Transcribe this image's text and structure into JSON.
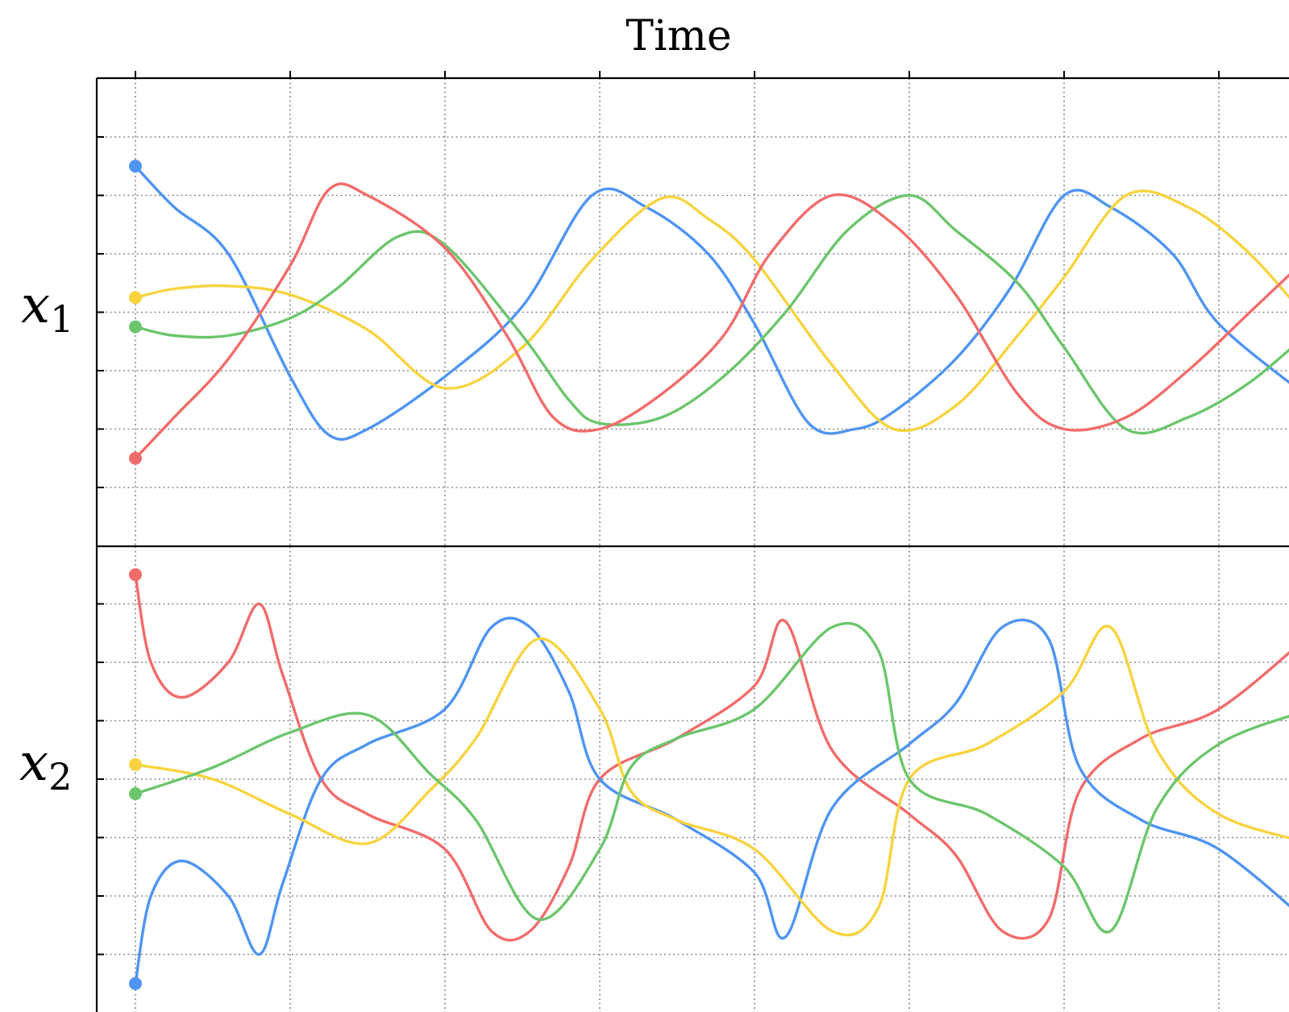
{
  "chart_data": {
    "type": "line",
    "title": "Time",
    "colors": {
      "red": "#f26b6b",
      "blue": "#4f94f3",
      "yellow": "#f8d33f",
      "green": "#6cc56c"
    },
    "panels": [
      {
        "ylabel_main": "x",
        "ylabel_sub": "1",
        "ylim": [
          -4,
          4
        ],
        "xlim": [
          -0.25,
          7.6
        ],
        "series": [
          {
            "color_key": "blue",
            "x": [
              0,
              0.25,
              0.6,
              1.0,
              1.25,
              1.5,
              2.0,
              2.5,
              2.95,
              3.3,
              3.7,
              4.0,
              4.35,
              4.65,
              4.9,
              5.3,
              5.65,
              6.0,
              6.3,
              6.7,
              7.0,
              7.6
            ],
            "y": [
              2.5,
              1.8,
              1.0,
              -1.1,
              -2.1,
              -2.0,
              -1.1,
              0.1,
              2.0,
              1.8,
              1.0,
              -0.2,
              -1.9,
              -2.0,
              -1.7,
              -0.8,
              0.4,
              2.0,
              1.8,
              1.0,
              -0.2,
              -1.5
            ]
          },
          {
            "color_key": "yellow",
            "x": [
              0,
              0.25,
              0.6,
              1.0,
              1.5,
              2.0,
              2.5,
              2.95,
              3.4,
              3.7,
              4.0,
              4.5,
              4.9,
              5.3,
              5.7,
              6.0,
              6.4,
              6.8,
              7.2,
              7.6
            ],
            "y": [
              0.25,
              0.4,
              0.45,
              0.3,
              -0.3,
              -1.3,
              -0.6,
              0.9,
              1.95,
              1.6,
              0.9,
              -0.9,
              -2.0,
              -1.6,
              -0.4,
              0.6,
              2.0,
              1.8,
              1.0,
              -0.2
            ]
          },
          {
            "color_key": "green",
            "x": [
              0,
              0.25,
              0.6,
              1.0,
              1.3,
              1.7,
              2.0,
              2.5,
              2.8,
              3.0,
              3.4,
              3.8,
              4.2,
              4.6,
              5.0,
              5.3,
              5.7,
              6.0,
              6.4,
              6.8,
              7.2,
              7.6
            ],
            "y": [
              -0.25,
              -0.4,
              -0.4,
              -0.1,
              0.4,
              1.3,
              1.15,
              -0.4,
              -1.5,
              -1.9,
              -1.8,
              -1.1,
              0.0,
              1.4,
              2.0,
              1.4,
              0.5,
              -0.6,
              -2.0,
              -1.8,
              -1.2,
              -0.3
            ]
          },
          {
            "color_key": "red",
            "x": [
              0,
              0.25,
              0.6,
              1.0,
              1.25,
              1.5,
              2.0,
              2.4,
              2.7,
              3.0,
              3.4,
              3.8,
              4.1,
              4.5,
              4.9,
              5.3,
              5.7,
              6.0,
              6.4,
              6.8,
              7.2,
              7.6
            ],
            "y": [
              -2.5,
              -1.8,
              -0.8,
              0.8,
              2.1,
              2.0,
              1.1,
              -0.4,
              -1.8,
              -2.0,
              -1.4,
              -0.4,
              1.0,
              2.0,
              1.5,
              0.3,
              -1.4,
              -2.0,
              -1.8,
              -1.0,
              0.0,
              1.0
            ]
          }
        ]
      },
      {
        "ylabel_main": "x",
        "ylabel_sub": "2",
        "ylim": [
          -4,
          4
        ],
        "xlim": [
          -0.25,
          7.6
        ],
        "series": [
          {
            "color_key": "red",
            "x": [
              0,
              0.1,
              0.3,
              0.6,
              0.8,
              0.95,
              1.2,
              1.5,
              2.0,
              2.3,
              2.55,
              2.8,
              3.0,
              3.5,
              4.0,
              4.2,
              4.5,
              5.0,
              5.3,
              5.6,
              5.9,
              6.1,
              6.5,
              7.0,
              7.6
            ],
            "y": [
              3.5,
              2.0,
              1.4,
              2.0,
              3.0,
              1.8,
              0.0,
              -0.6,
              -1.2,
              -2.6,
              -2.6,
              -1.5,
              0.0,
              0.7,
              1.6,
              2.7,
              0.5,
              -0.6,
              -1.3,
              -2.6,
              -2.4,
              -0.2,
              0.7,
              1.2,
              2.5
            ]
          },
          {
            "color_key": "blue",
            "x": [
              0,
              0.1,
              0.3,
              0.6,
              0.8,
              0.95,
              1.2,
              1.5,
              2.0,
              2.3,
              2.55,
              2.8,
              3.0,
              3.5,
              4.0,
              4.2,
              4.5,
              5.0,
              5.3,
              5.6,
              5.9,
              6.1,
              6.5,
              7.0,
              7.6
            ],
            "y": [
              -3.5,
              -2.0,
              -1.4,
              -2.0,
              -3.0,
              -1.8,
              0.0,
              0.6,
              1.2,
              2.6,
              2.6,
              1.5,
              0.0,
              -0.7,
              -1.6,
              -2.7,
              -0.5,
              0.6,
              1.3,
              2.6,
              2.4,
              0.2,
              -0.7,
              -1.2,
              -2.5
            ]
          },
          {
            "color_key": "yellow",
            "x": [
              0,
              0.5,
              1.0,
              1.5,
              1.9,
              2.2,
              2.6,
              3.0,
              3.2,
              3.5,
              4.0,
              4.5,
              4.8,
              5.0,
              5.5,
              6.0,
              6.3,
              6.6,
              7.0,
              7.6
            ],
            "y": [
              0.25,
              0.0,
              -0.6,
              -1.1,
              -0.2,
              0.7,
              2.4,
              1.2,
              -0.2,
              -0.7,
              -1.2,
              -2.6,
              -2.2,
              0.0,
              0.6,
              1.5,
              2.6,
              0.5,
              -0.6,
              -1.1
            ]
          },
          {
            "color_key": "green",
            "x": [
              0,
              0.5,
              1.0,
              1.5,
              1.9,
              2.2,
              2.6,
              3.0,
              3.2,
              3.5,
              4.0,
              4.5,
              4.8,
              5.0,
              5.5,
              6.0,
              6.3,
              6.6,
              7.0,
              7.6
            ],
            "y": [
              -0.25,
              0.2,
              0.8,
              1.1,
              0.1,
              -0.7,
              -2.4,
              -1.2,
              0.2,
              0.7,
              1.2,
              2.6,
              2.2,
              0.0,
              -0.6,
              -1.5,
              -2.6,
              -0.5,
              0.6,
              1.2
            ]
          }
        ]
      }
    ]
  }
}
